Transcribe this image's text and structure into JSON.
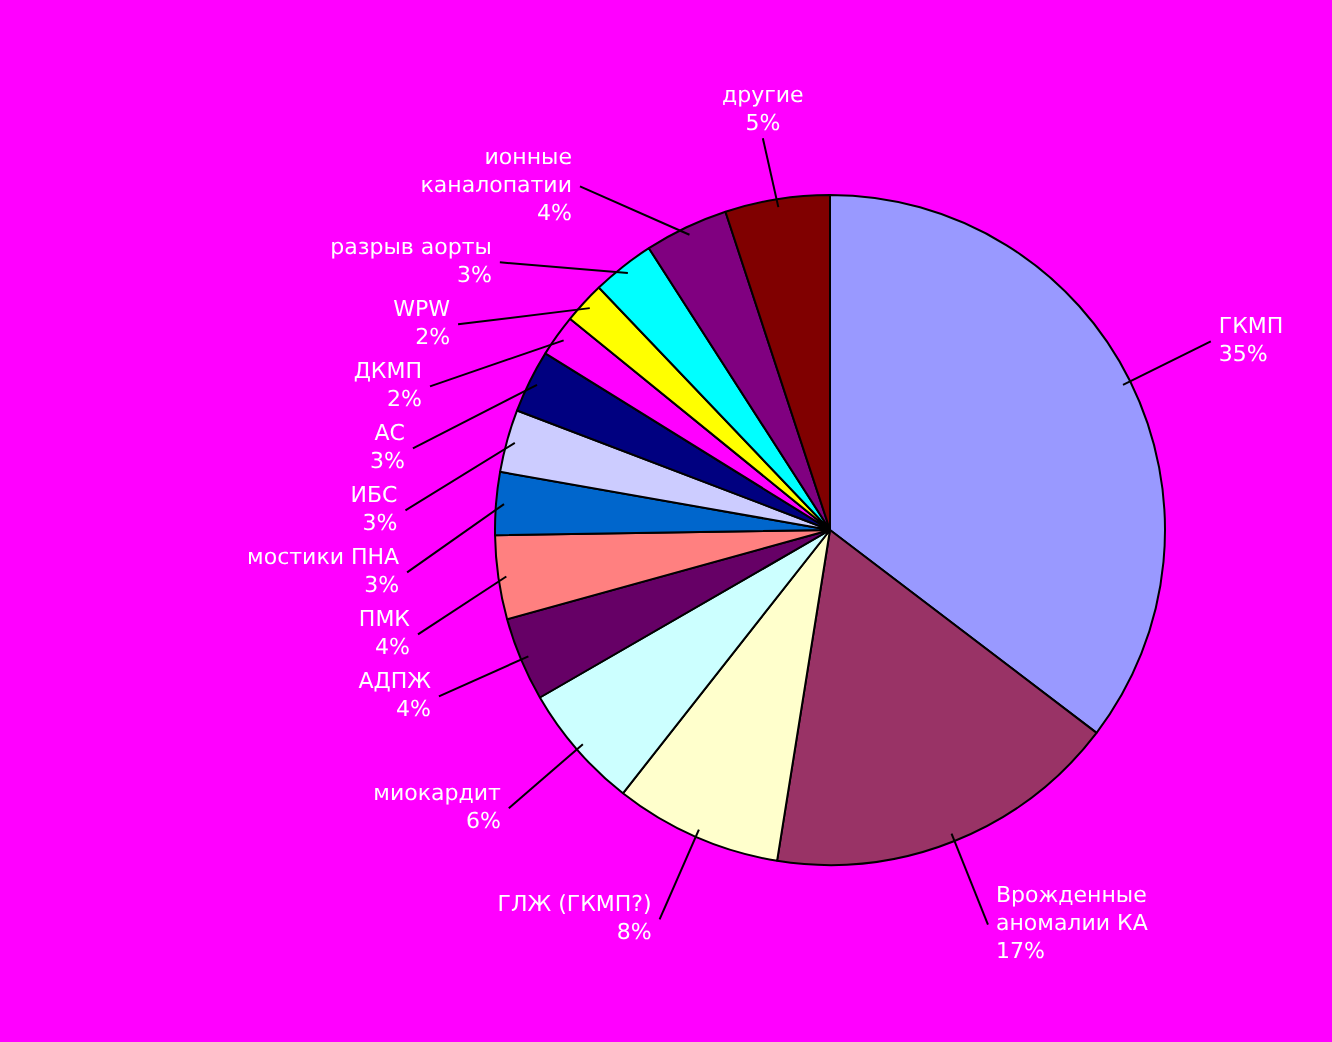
{
  "chart_data": {
    "type": "pie",
    "categories": [
      "ГКМП",
      "Врожденные аномалии КА",
      "ГЛЖ (ГКМП?)",
      "миокардит",
      "АДПЖ",
      "ПМК",
      "мостики ПНА",
      "ИБС",
      "АС",
      "ДКМП",
      "WPW",
      "разрыв аорты",
      "ионные каналопатии",
      "другие"
    ],
    "values": [
      35,
      17,
      8,
      6,
      4,
      4,
      3,
      3,
      3,
      2,
      2,
      3,
      4,
      5
    ],
    "value_labels": [
      "35%",
      "17%",
      "8%",
      "6%",
      "4%",
      "4%",
      "3%",
      "3%",
      "3%",
      "2%",
      "2%",
      "3%",
      "4%",
      "5%"
    ],
    "colors": [
      "#9999ff",
      "#993366",
      "#ffffcc",
      "#ccffff",
      "#660066",
      "#ff8080",
      "#0066cc",
      "#ccccff",
      "#000080",
      "#ff00ff",
      "#ffff00",
      "#00ffff",
      "#800080",
      "#800000"
    ],
    "legend": false
  }
}
